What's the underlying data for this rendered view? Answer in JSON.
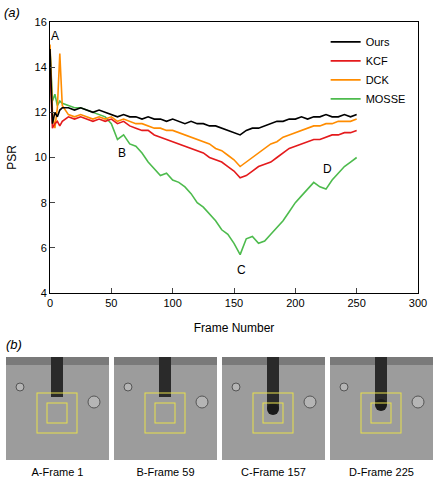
{
  "chart_data": {
    "type": "line",
    "panel_label": "(a)",
    "x_label": "Frame Number",
    "y_label": "PSR",
    "x": [
      0,
      2,
      4,
      6,
      8,
      10,
      15,
      20,
      25,
      30,
      35,
      40,
      45,
      50,
      55,
      60,
      65,
      70,
      75,
      80,
      85,
      90,
      95,
      100,
      105,
      110,
      115,
      120,
      125,
      130,
      135,
      140,
      145,
      150,
      155,
      160,
      165,
      170,
      175,
      180,
      185,
      190,
      195,
      200,
      205,
      210,
      215,
      220,
      225,
      230,
      235,
      240,
      245,
      250
    ],
    "series": [
      {
        "name": "Ours",
        "color": "#000000",
        "values": [
          14.8,
          11.5,
          12.0,
          11.8,
          12.1,
          12.2,
          12.2,
          12.1,
          12.2,
          12.1,
          12.0,
          12.1,
          12.0,
          11.9,
          11.8,
          11.9,
          11.8,
          11.8,
          11.7,
          11.8,
          11.7,
          11.7,
          11.6,
          11.7,
          11.6,
          11.5,
          11.6,
          11.5,
          11.5,
          11.4,
          11.4,
          11.3,
          11.2,
          11.1,
          11.0,
          11.2,
          11.3,
          11.3,
          11.4,
          11.5,
          11.6,
          11.6,
          11.7,
          11.7,
          11.8,
          11.7,
          11.8,
          11.8,
          11.9,
          11.8,
          11.8,
          11.9,
          11.8,
          11.9
        ]
      },
      {
        "name": "KCF",
        "color": "#e41a1c",
        "values": [
          14.0,
          11.3,
          11.5,
          11.6,
          11.4,
          11.6,
          11.8,
          11.7,
          11.8,
          11.7,
          11.6,
          11.7,
          11.6,
          11.7,
          11.5,
          11.6,
          11.4,
          11.3,
          11.2,
          11.2,
          11.0,
          10.9,
          10.8,
          10.7,
          10.6,
          10.5,
          10.4,
          10.3,
          10.2,
          10.0,
          9.9,
          9.8,
          9.6,
          9.4,
          9.1,
          9.2,
          9.4,
          9.6,
          9.7,
          9.8,
          10.0,
          10.2,
          10.4,
          10.5,
          10.6,
          10.7,
          10.8,
          10.8,
          10.9,
          11.0,
          11.0,
          11.1,
          11.1,
          11.2
        ]
      },
      {
        "name": "DCK",
        "color": "#ff8c00",
        "values": [
          15.0,
          12.0,
          11.3,
          12.2,
          14.6,
          12.3,
          11.9,
          11.8,
          11.9,
          11.8,
          11.7,
          11.8,
          11.7,
          11.8,
          11.6,
          11.7,
          11.6,
          11.5,
          11.5,
          11.4,
          11.3,
          11.3,
          11.2,
          11.2,
          11.1,
          11.0,
          10.9,
          10.8,
          10.7,
          10.6,
          10.4,
          10.3,
          10.1,
          9.9,
          9.6,
          9.8,
          10.0,
          10.2,
          10.4,
          10.6,
          10.7,
          10.9,
          11.0,
          11.1,
          11.2,
          11.3,
          11.4,
          11.4,
          11.5,
          11.5,
          11.6,
          11.6,
          11.6,
          11.7
        ]
      },
      {
        "name": "MOSSE",
        "color": "#4dbb4d",
        "values": [
          14.8,
          12.5,
          12.8,
          12.3,
          12.5,
          12.4,
          12.3,
          12.2,
          12.2,
          12.1,
          12.0,
          11.9,
          11.8,
          11.5,
          10.8,
          11.0,
          10.6,
          10.5,
          10.2,
          9.8,
          9.5,
          9.2,
          9.3,
          9.0,
          8.9,
          8.7,
          8.4,
          8.0,
          7.8,
          7.5,
          7.2,
          6.8,
          6.6,
          6.2,
          5.7,
          6.4,
          6.5,
          6.2,
          6.3,
          6.6,
          6.9,
          7.2,
          7.6,
          8.0,
          8.3,
          8.6,
          8.9,
          8.7,
          8.6,
          9.0,
          9.3,
          9.6,
          9.8,
          10.0
        ]
      }
    ],
    "annotations": [
      {
        "text": "A",
        "x": 4,
        "y": 15.4
      },
      {
        "text": "B",
        "x": 59,
        "y": 10.2
      },
      {
        "text": "C",
        "x": 156,
        "y": 5.0
      },
      {
        "text": "D",
        "x": 226,
        "y": 9.5
      }
    ],
    "xlim": [
      0,
      300
    ],
    "xticks": [
      0,
      50,
      100,
      150,
      200,
      250,
      300
    ],
    "ylim": [
      4,
      16
    ],
    "yticks": [
      4,
      6,
      8,
      10,
      12,
      14,
      16
    ],
    "grid": false,
    "legend": "top-right"
  },
  "panel_b": {
    "label": "(b)",
    "images": [
      {
        "caption": "A-Frame 1"
      },
      {
        "caption": "B-Frame 59"
      },
      {
        "caption": "C-Frame 157"
      },
      {
        "caption": "D-Frame 225"
      }
    ]
  }
}
